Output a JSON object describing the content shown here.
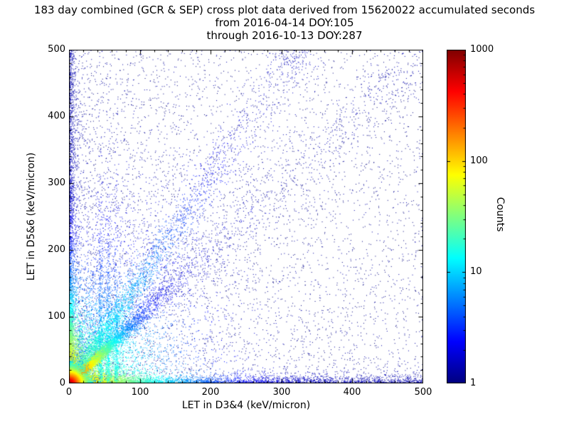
{
  "title": {
    "line1": "183 day combined (GCR & SEP) cross plot data derived from 15620022 accumulated seconds",
    "line2": "from 2016-04-14 DOY:105",
    "line3": "through 2016-10-13 DOY:287"
  },
  "axes": {
    "xlabel": "LET in D3&4 (keV/micron)",
    "ylabel": "LET in D5&6 (keV/micron)",
    "xrange": [
      0,
      500
    ],
    "yrange": [
      0,
      500
    ],
    "xticks": [
      "0",
      "100",
      "200",
      "300",
      "400",
      "500"
    ],
    "yticks": [
      "0",
      "100",
      "200",
      "300",
      "400",
      "500"
    ]
  },
  "colorbar": {
    "label": "Counts",
    "scale": "log",
    "range": [
      1,
      1000
    ],
    "ticks": [
      "1000",
      "100",
      "10",
      "1"
    ],
    "colormap": "jet",
    "stops": [
      {
        "t": 0.0,
        "c": "#00007f"
      },
      {
        "t": 0.125,
        "c": "#0000ff"
      },
      {
        "t": 0.375,
        "c": "#00ffff"
      },
      {
        "t": 0.625,
        "c": "#ffff00"
      },
      {
        "t": 0.875,
        "c": "#ff0000"
      },
      {
        "t": 1.0,
        "c": "#7f0000"
      }
    ]
  },
  "chart_data": {
    "type": "scatter",
    "subtype": "2d-histogram-cross-plot",
    "title": "183 day combined (GCR & SEP) cross plot data derived from 15620022 accumulated seconds",
    "date_start": "2016-04-14 DOY:105",
    "date_end": "2016-10-13 DOY:287",
    "accumulated_seconds_label": "15620022",
    "xlabel": "LET in D3&4 (keV/micron)",
    "ylabel": "LET in D5&6 (keV/micron)",
    "x_range": [
      0,
      500
    ],
    "y_range": [
      0,
      500
    ],
    "color_scale": {
      "type": "log",
      "min": 1,
      "max": 1000,
      "label": "Counts",
      "colormap": "jet"
    },
    "summary": "Very hot (red/yellow, ~1000 counts) core at origin; cyan-to-blue streak along the y=x diagonal out to ~150; a second steeper diagonal band (slope ~1.55) reaching (310,480); dense blue bands hugging both axes over their full length; a broad blue/cyan fan in the lower-left; faint vertical streaks near x=45-65; sparse dark-blue single counts scattered everywhere, with a thin sparse diagonal continuing to (500,500).",
    "features": [
      {
        "type": "uniform",
        "n": 2600,
        "pow": 1.0,
        "d": 1.0
      },
      {
        "type": "uniform",
        "n": 2600,
        "pow": 1.9,
        "d": 1.3
      },
      {
        "type": "fan",
        "n": 4500,
        "rlen": 75,
        "amin": 8,
        "amax": 82,
        "d0": 60,
        "dlen": 55,
        "dbg": 1.4
      },
      {
        "type": "fan",
        "n": 2200,
        "rlen": 160,
        "amin": 45,
        "amax": 88,
        "d0": 8,
        "dlen": 120,
        "dbg": 1.2
      },
      {
        "type": "band_x",
        "n": 6000,
        "mix": 0.55,
        "explen": 60,
        "width": 4.5,
        "d0": 150,
        "dlen": 50,
        "dbg": 1.4
      },
      {
        "type": "band_y",
        "n": 4200,
        "mix": 0.6,
        "explen": 55,
        "width": 4.0,
        "d0": 150,
        "dlen": 45,
        "dbg": 1.4
      },
      {
        "type": "streaks",
        "n": 1400,
        "xs": [
          44,
          55,
          66
        ],
        "w": [
          0.4,
          0.35,
          0.25
        ],
        "ylen": 95,
        "xsig": 1.8,
        "d0": 18,
        "dlen": 85,
        "dbg": 1.4
      },
      {
        "type": "diagonal",
        "n": 6500,
        "slope": 1.0,
        "tlen": 38,
        "tmax": 260,
        "spread0": 1.2,
        "spreadk": 0.055,
        "d0": 400,
        "dlen": 18,
        "dbg": 2.0
      },
      {
        "type": "diagonal",
        "n": 2600,
        "slope": 1.55,
        "tlen": 110,
        "tmax": 315,
        "spread0": 3.0,
        "spreadk": 0.05,
        "d0": 30,
        "dlen": 60,
        "dbg": 1.4
      },
      {
        "type": "diag_sparse",
        "n": 700,
        "slope": 1.0,
        "tmin": 120,
        "tmax": 500,
        "sigma": 22,
        "d": 1.4
      },
      {
        "type": "radial_blob",
        "n": 9000,
        "mean": 6.5,
        "d0": 1000,
        "dlen": 7,
        "dbg": 1.5
      }
    ]
  }
}
